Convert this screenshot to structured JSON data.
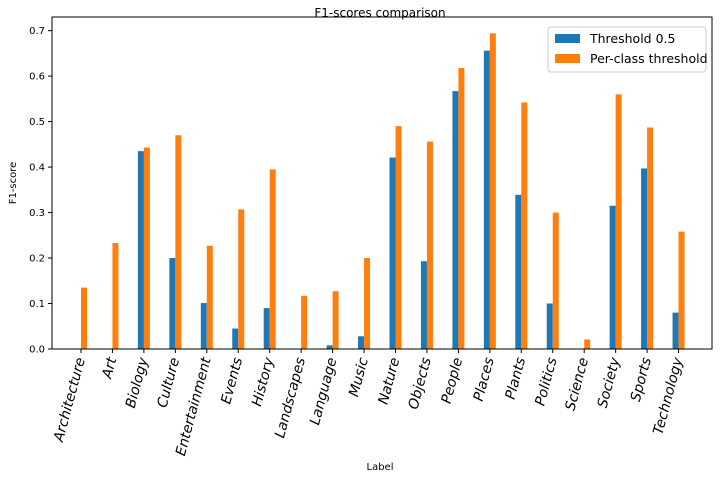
{
  "chart_data": {
    "type": "bar",
    "title": "F1-scores comparison",
    "xlabel": "Label",
    "ylabel": "F1-score",
    "ylim": [
      0,
      0.73
    ],
    "yticks": [
      0.0,
      0.1,
      0.2,
      0.3,
      0.4,
      0.5,
      0.6,
      0.7
    ],
    "ytick_labels": [
      "0.0",
      "0.1",
      "0.2",
      "0.3",
      "0.4",
      "0.5",
      "0.6",
      "0.7"
    ],
    "grid": false,
    "legend_position": "top-right",
    "categories": [
      "Architecture",
      "Art",
      "Biology",
      "Culture",
      "Entertainment",
      "Events",
      "History",
      "Landscapes",
      "Language",
      "Music",
      "Nature",
      "Objects",
      "People",
      "Places",
      "Plants",
      "Politics",
      "Science",
      "Society",
      "Sports",
      "Technology"
    ],
    "series": [
      {
        "name": "Threshold 0.5",
        "color": "#1f77b4",
        "values": [
          0.0,
          0.0,
          0.435,
          0.2,
          0.101,
          0.045,
          0.09,
          0.0,
          0.008,
          0.028,
          0.421,
          0.193,
          0.567,
          0.656,
          0.339,
          0.1,
          0.0,
          0.315,
          0.397,
          0.08
        ]
      },
      {
        "name": "Per-class threshold",
        "color": "#ff7f0e",
        "values": [
          0.135,
          0.233,
          0.443,
          0.47,
          0.227,
          0.307,
          0.395,
          0.117,
          0.127,
          0.2,
          0.49,
          0.456,
          0.618,
          0.694,
          0.542,
          0.3,
          0.021,
          0.56,
          0.487,
          0.258
        ]
      }
    ]
  }
}
